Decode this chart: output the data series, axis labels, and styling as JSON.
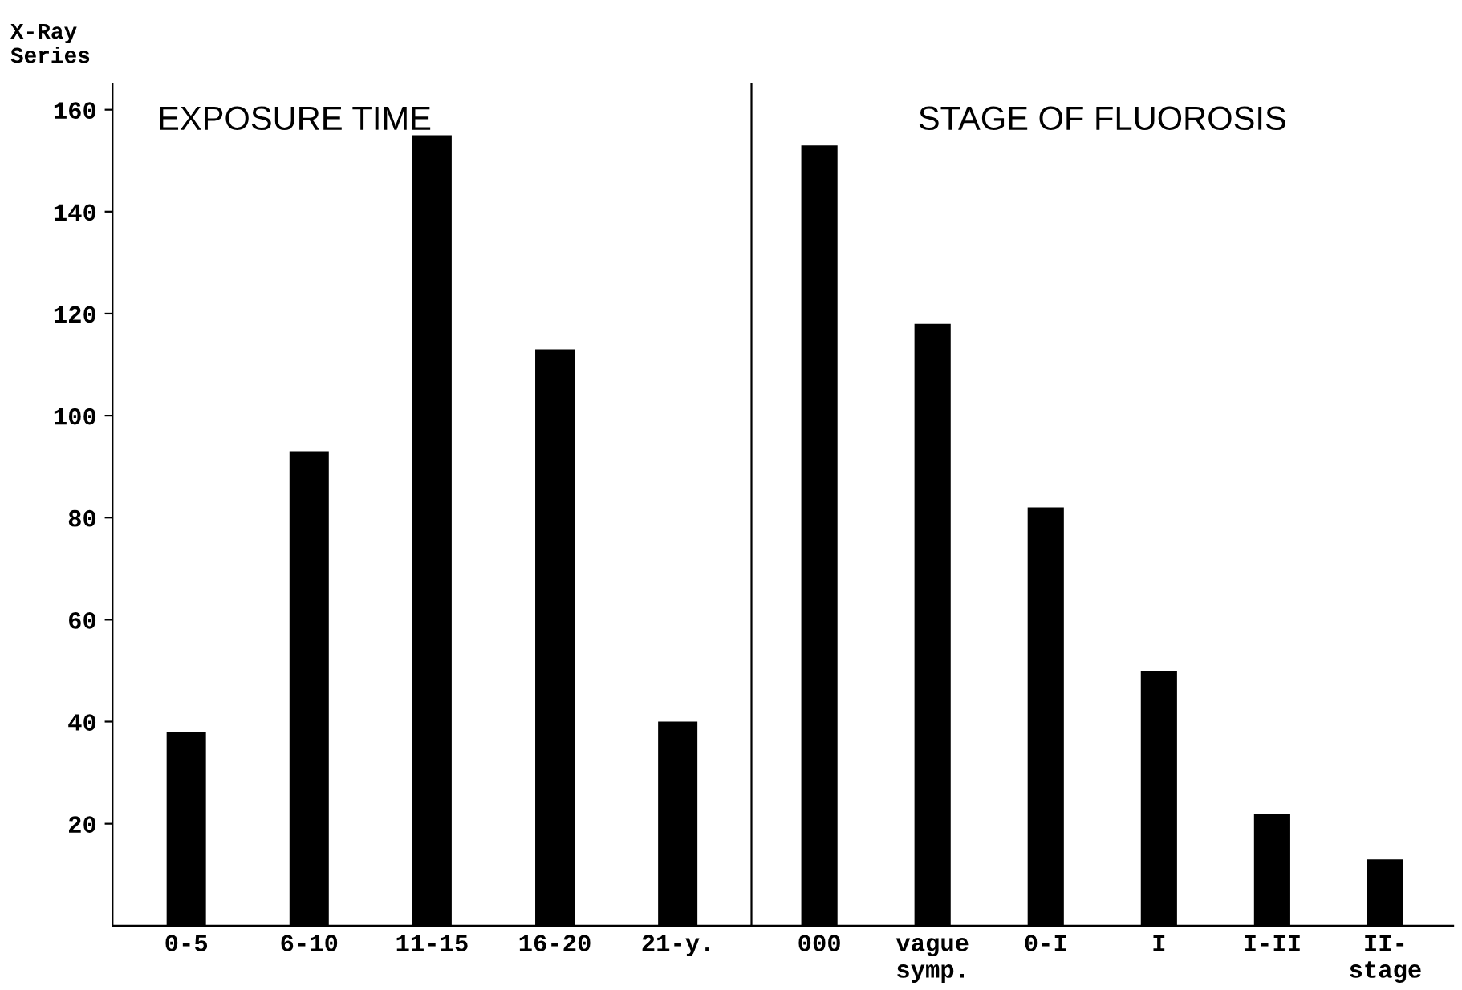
{
  "chart_data": [
    {
      "type": "bar",
      "title": "EXPOSURE TIME",
      "ylabel": "X-Ray\nSeries",
      "categories": [
        "0-5",
        "6-10",
        "11-15",
        "16-20",
        "21-y."
      ],
      "values": [
        38,
        93,
        155,
        113,
        40
      ],
      "color": "#000000",
      "ylim": [
        0,
        165
      ],
      "yticks": [
        20,
        40,
        60,
        80,
        100,
        120,
        140,
        160
      ],
      "grid": false
    },
    {
      "type": "bar",
      "title": "STAGE OF FLUOROSIS",
      "categories": [
        "000",
        "vague\nsymp.",
        "0-I",
        "I",
        "I-II",
        "II-\nstage"
      ],
      "values": [
        153,
        118,
        82,
        50,
        22,
        13
      ],
      "color": "#000000",
      "ylim": [
        0,
        165
      ],
      "tick_labels": "x",
      "grid": false
    }
  ]
}
